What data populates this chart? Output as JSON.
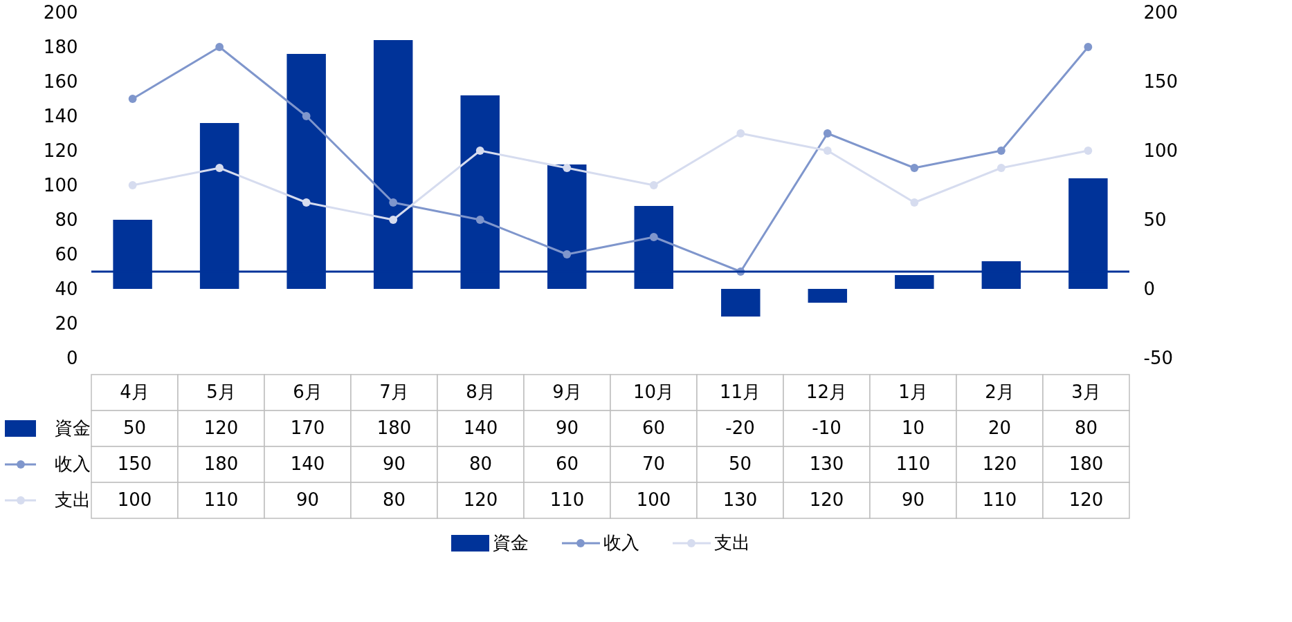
{
  "chart_data": {
    "type": "bar",
    "categories": [
      "4月",
      "5月",
      "6月",
      "7月",
      "8月",
      "9月",
      "10月",
      "11月",
      "12月",
      "1月",
      "2月",
      "3月"
    ],
    "series": [
      {
        "name": "資金",
        "axis": "y2",
        "color": "#003399",
        "values": [
          50,
          120,
          170,
          180,
          140,
          90,
          60,
          -20,
          -10,
          10,
          20,
          80
        ]
      },
      {
        "name": "收入",
        "type": "line",
        "color": "#7f96cc",
        "values": [
          150,
          180,
          140,
          90,
          80,
          60,
          70,
          50,
          130,
          110,
          120,
          180
        ]
      },
      {
        "name": "支出",
        "type": "line",
        "color": "#d6dcef",
        "values": [
          100,
          110,
          90,
          80,
          120,
          110,
          100,
          130,
          120,
          90,
          110,
          120
        ]
      }
    ],
    "ylim": [
      0,
      200
    ],
    "yticks": [
      0,
      20,
      40,
      60,
      80,
      100,
      120,
      140,
      160,
      180,
      200
    ],
    "y2lim": [
      -50,
      200
    ],
    "y2ticks": [
      -50,
      0,
      50,
      100,
      150,
      200
    ],
    "ref_lines": [
      {
        "axis": "y",
        "value": 50,
        "color": "#003399"
      }
    ],
    "marker": "circle",
    "grid": false,
    "legend": "bottom",
    "data_labels": true
  }
}
